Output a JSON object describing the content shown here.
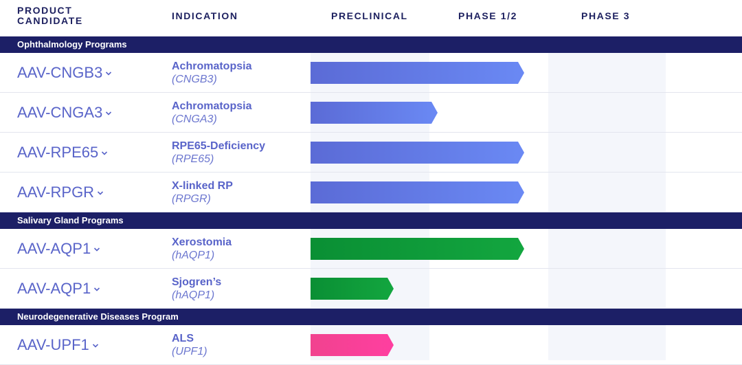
{
  "header": {
    "candidate": "PRODUCT CANDIDATE",
    "indication": "INDICATION",
    "stages": [
      "PRECLINICAL",
      "PHASE 1/2",
      "PHASE 3"
    ]
  },
  "colors": {
    "band": "#1c1f66",
    "ophthalmology": [
      "#5b6bd6",
      "#6a89f4"
    ],
    "salivary": [
      "#0a8f34",
      "#13a63f"
    ],
    "neuro": [
      "#f1428f",
      "#ff3fa0"
    ]
  },
  "chart_data": {
    "type": "bar",
    "stages": [
      "Preclinical",
      "Phase 1/2",
      "Phase 3"
    ],
    "value_meaning": "progress measured in stages",
    "xlim": [
      0,
      3
    ],
    "groups": [
      {
        "label": "Ophthalmology Programs",
        "color_key": "ophthalmology",
        "rows": [
          {
            "candidate": "AAV-CNGB3",
            "indication": "Achromatopsia",
            "gene": "(CNGB3)",
            "progress": 1.8
          },
          {
            "candidate": "AAV-CNGA3",
            "indication": "Achromatopsia",
            "gene": "(CNGA3)",
            "progress": 1.07
          },
          {
            "candidate": "AAV-RPE65",
            "indication": "RPE65-Deficiency",
            "gene": "(RPE65)",
            "progress": 1.8
          },
          {
            "candidate": "AAV-RPGR",
            "indication": "X-linked RP",
            "gene": "(RPGR)",
            "progress": 1.8
          }
        ]
      },
      {
        "label": "Salivary Gland Programs",
        "color_key": "salivary",
        "rows": [
          {
            "candidate": "AAV-AQP1",
            "indication": "Xerostomia",
            "gene": "(hAQP1)",
            "progress": 1.8
          },
          {
            "candidate": "AAV-AQP1",
            "indication": "Sjogren’s",
            "gene": "(hAQP1)",
            "progress": 0.7
          }
        ]
      },
      {
        "label": "Neurodegenerative Diseases Program",
        "color_key": "neuro",
        "rows": [
          {
            "candidate": "AAV-UPF1",
            "indication": "ALS",
            "gene": "(UPF1)",
            "progress": 0.7
          }
        ]
      }
    ]
  }
}
